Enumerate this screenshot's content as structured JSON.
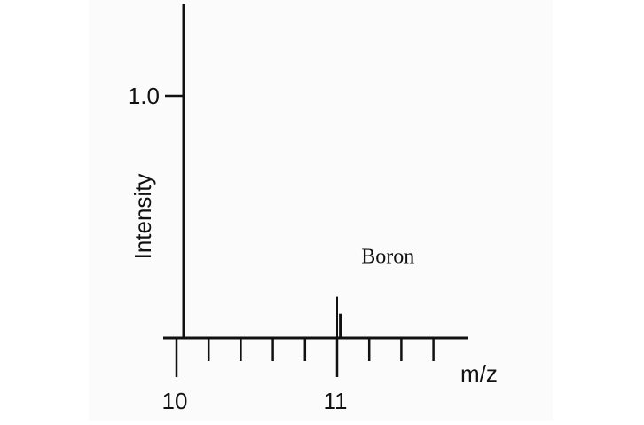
{
  "chart_data": {
    "type": "bar",
    "title": "",
    "xlabel": "m/z",
    "ylabel": "Intensity",
    "xlim": [
      10,
      11.6
    ],
    "ylim": [
      0,
      1.0
    ],
    "x_major_ticks": [
      10,
      11
    ],
    "x_minor_step": 0.2,
    "y_ticks": [
      1.0
    ],
    "y_tick_labels": [
      "1.0"
    ],
    "series": [
      {
        "values": [
          {
            "x": 11.0,
            "y": 0.17
          },
          {
            "x": 11.02,
            "y": 0.1
          }
        ]
      }
    ],
    "annotations": [
      {
        "text": "Boron",
        "x": 11.3,
        "y": 0.31
      }
    ],
    "grid": false,
    "colors": {
      "axis": "#111111",
      "peak": "#111111",
      "background": "#fbfbfb"
    }
  }
}
